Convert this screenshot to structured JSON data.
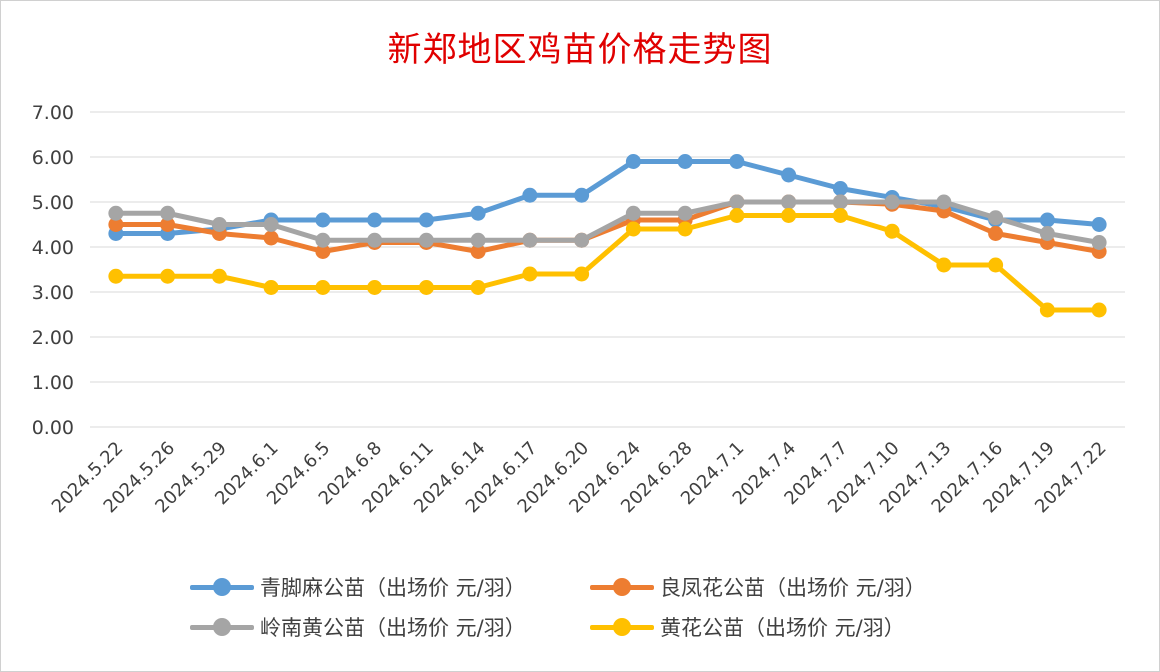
{
  "title": "新郑地区鸡苗价格走势图",
  "chart_data": {
    "type": "line",
    "title": "新郑地区鸡苗价格走势图",
    "xlabel": "",
    "ylabel": "",
    "ylim": [
      0,
      7
    ],
    "yticks": [
      "0.00",
      "1.00",
      "2.00",
      "3.00",
      "4.00",
      "5.00",
      "6.00",
      "7.00"
    ],
    "grid": true,
    "legend_position": "bottom",
    "categories": [
      "2024.5.22",
      "2024.5.26",
      "2024.5.29",
      "2024.6.1",
      "2024.6.5",
      "2024.6.8",
      "2024.6.11",
      "2024.6.14",
      "2024.6.17",
      "2024.6.20",
      "2024.6.24",
      "2024.6.28",
      "2024.7.1",
      "2024.7.4",
      "2024.7.7",
      "2024.7.10",
      "2024.7.13",
      "2024.7.16",
      "2024.7.19",
      "2024.7.22"
    ],
    "series": [
      {
        "name": "青脚麻公苗（出场价 元/羽）",
        "color": "#5b9bd5",
        "values": [
          4.3,
          4.3,
          4.4,
          4.6,
          4.6,
          4.6,
          4.6,
          4.75,
          5.15,
          5.15,
          5.9,
          5.9,
          5.9,
          5.6,
          5.3,
          5.1,
          4.9,
          4.6,
          4.6,
          4.5
        ]
      },
      {
        "name": "良凤花公苗（出场价 元/羽）",
        "color": "#ed7d31",
        "values": [
          4.5,
          4.5,
          4.3,
          4.2,
          3.9,
          4.1,
          4.1,
          3.9,
          4.15,
          4.15,
          4.6,
          4.6,
          5.0,
          5.0,
          5.0,
          4.95,
          4.8,
          4.3,
          4.1,
          3.9
        ]
      },
      {
        "name": "岭南黄公苗（出场价 元/羽）",
        "color": "#a5a5a5",
        "values": [
          4.75,
          4.75,
          4.5,
          4.5,
          4.15,
          4.15,
          4.15,
          4.15,
          4.15,
          4.15,
          4.75,
          4.75,
          5.0,
          5.0,
          5.0,
          5.0,
          5.0,
          4.65,
          4.3,
          4.1
        ]
      },
      {
        "name": "黄花公苗（出场价 元/羽）",
        "color": "#ffc000",
        "values": [
          3.35,
          3.35,
          3.35,
          3.1,
          3.1,
          3.1,
          3.1,
          3.1,
          3.4,
          3.4,
          4.4,
          4.4,
          4.7,
          4.7,
          4.7,
          4.35,
          3.6,
          3.6,
          2.6,
          2.6
        ]
      }
    ]
  }
}
